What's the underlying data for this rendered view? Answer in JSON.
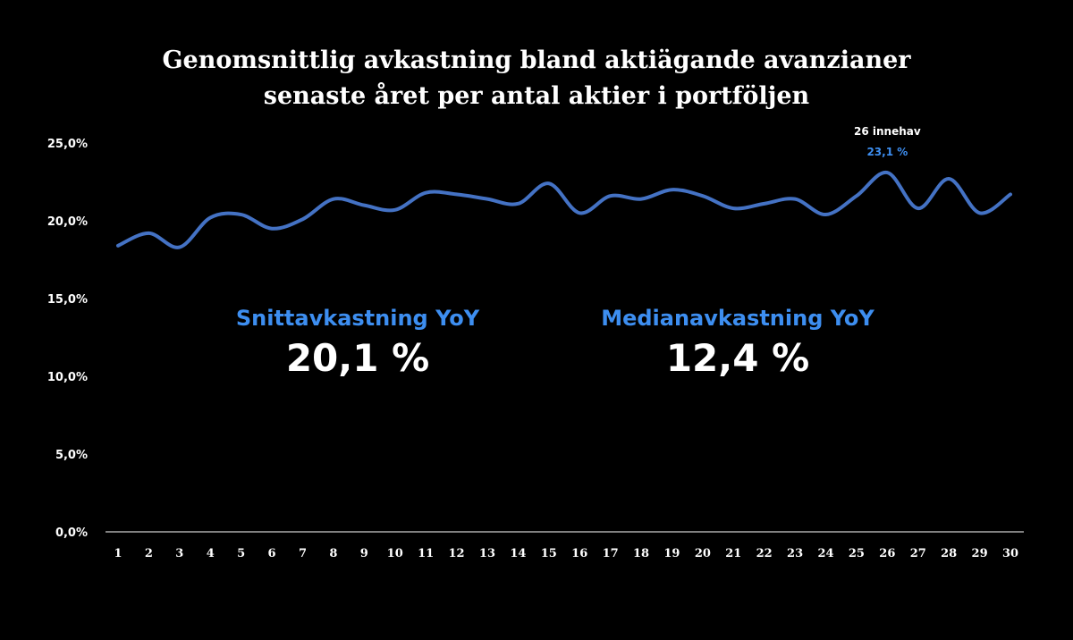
{
  "chart_data": {
    "type": "line",
    "title": "Genomsnittlig avkastning bland aktiägande avanzianer",
    "subtitle": "senaste året per antal aktier i portföljen",
    "x": [
      1,
      2,
      3,
      4,
      5,
      6,
      7,
      8,
      9,
      10,
      11,
      12,
      13,
      14,
      15,
      16,
      17,
      18,
      19,
      20,
      21,
      22,
      23,
      24,
      25,
      26,
      27,
      28,
      29,
      30
    ],
    "series": [
      {
        "values": [
          18.4,
          19.2,
          18.3,
          20.2,
          20.4,
          19.5,
          20.1,
          21.4,
          21.0,
          20.7,
          21.8,
          21.7,
          21.4,
          21.1,
          22.4,
          20.5,
          21.6,
          21.4,
          22.0,
          21.6,
          20.8,
          21.1,
          21.4,
          20.4,
          21.6,
          23.1,
          20.8,
          22.7,
          20.5,
          21.7
        ],
        "color": "#4472c4"
      }
    ],
    "ylim": [
      0,
      25
    ],
    "yticks": [
      "0,0%",
      "5,0%",
      "10,0%",
      "15,0%",
      "20,0%",
      "25,0%"
    ],
    "grid": false,
    "annotation": {
      "x": 26,
      "label": "26 innehav",
      "value": "23,1 %"
    }
  },
  "stats": [
    {
      "label": "Snittavkastning YoY",
      "value": "20,1 %"
    },
    {
      "label": "Medianavkastning YoY",
      "value": "12,4 %"
    }
  ]
}
